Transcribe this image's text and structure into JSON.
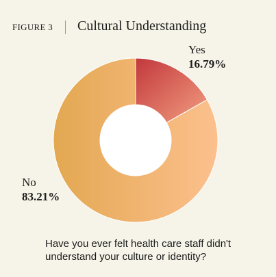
{
  "header": {
    "figure_label": "FIGURE 3",
    "title": "Cultural Understanding"
  },
  "question": "Have you ever felt health care staff didn't understand your culture or identity?",
  "colors": {
    "background": "#f6f4e9",
    "yes_start": "#c2383c",
    "yes_end": "#f29d80",
    "no_start": "#e3a851",
    "no_end": "#fcc08e"
  },
  "chart_data": {
    "type": "pie",
    "donut": true,
    "title": "Cultural Understanding",
    "slices": [
      {
        "label": "Yes",
        "value": 16.79,
        "display": "16.79%"
      },
      {
        "label": "No",
        "value": 83.21,
        "display": "83.21%"
      }
    ]
  }
}
